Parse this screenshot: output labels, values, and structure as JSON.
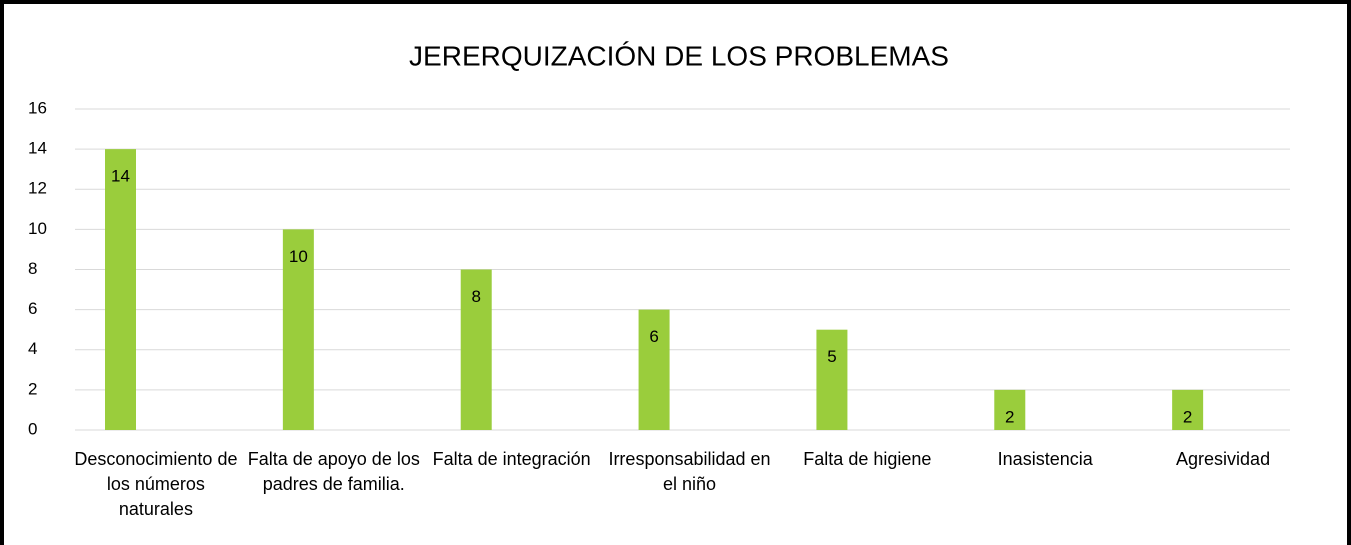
{
  "chart_data": {
    "type": "bar",
    "title": "JERERQUIZACIÓN DE LOS PROBLEMAS",
    "categories": [
      "Desconocimiento de los números naturales",
      "Falta de apoyo de los padres de familia.",
      "Falta de integración",
      "Irresponsabilidad en el niño",
      "Falta de higiene",
      "Inasistencia",
      "Agresividad"
    ],
    "values": [
      14,
      10,
      8,
      6,
      5,
      2,
      2
    ],
    "color": "#9acd3c",
    "ylim": [
      0,
      16
    ],
    "yticks": [
      0,
      2,
      4,
      6,
      8,
      10,
      12,
      14,
      16
    ],
    "grid": true
  }
}
